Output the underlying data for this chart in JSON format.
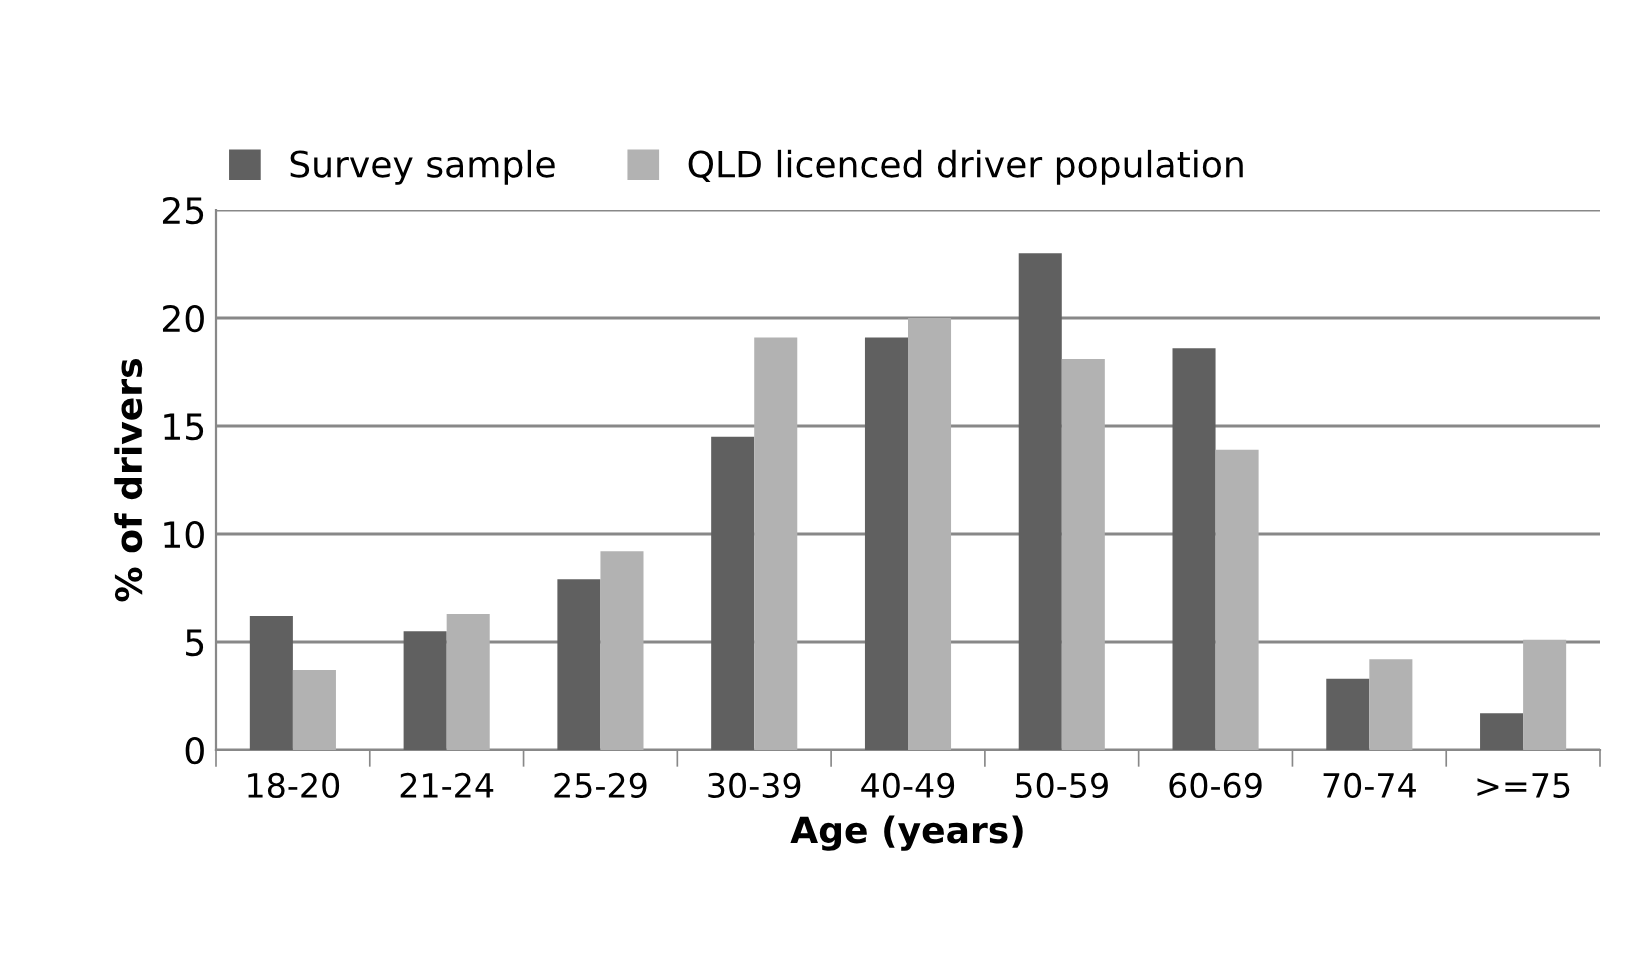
{
  "chart_data": {
    "type": "bar",
    "xlabel": "Age (years)",
    "ylabel": "% of drivers",
    "categories": [
      "18-20",
      "21-24",
      "25-29",
      "30-39",
      "40-49",
      "50-59",
      "60-69",
      "70-74",
      ">=75"
    ],
    "series": [
      {
        "name": "Survey sample",
        "color": "#606060",
        "values": [
          6.2,
          5.5,
          7.9,
          14.5,
          19.1,
          23.0,
          18.6,
          3.3,
          1.7
        ]
      },
      {
        "name": "QLD licenced driver population",
        "color": "#b2b2b2",
        "values": [
          3.7,
          6.3,
          9.2,
          19.1,
          20.0,
          18.1,
          13.9,
          4.2,
          5.1
        ]
      }
    ],
    "ylim": [
      0,
      25
    ],
    "yticks": [
      0,
      5,
      10,
      15,
      20,
      25
    ],
    "grid": "y",
    "legend": "top left"
  }
}
